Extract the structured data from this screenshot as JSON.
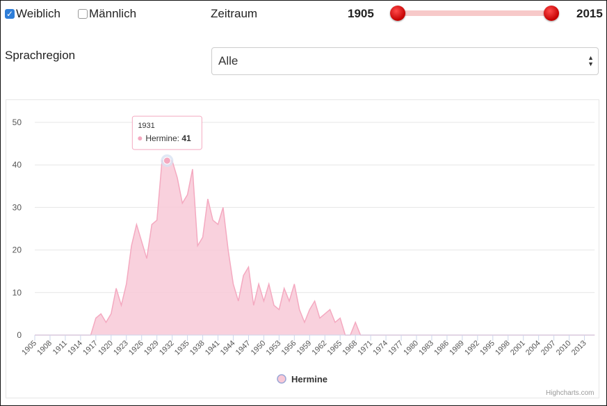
{
  "filters": {
    "female": {
      "label": "Weiblich",
      "checked": true
    },
    "male": {
      "label": "Männlich",
      "checked": false
    },
    "period_label": "Zeitraum",
    "range_start": "1905",
    "range_end": "2015",
    "region_label": "Sprachregion",
    "region_value": "Alle"
  },
  "colors": {
    "area_fill": "#f8c9d7",
    "area_line": "#f4a9c0",
    "slider": "#d40000",
    "checkbox": "#2f7ed8"
  },
  "tooltip": {
    "year": "1931",
    "series": "Hermine",
    "value": "41"
  },
  "legend": {
    "label": "Hermine"
  },
  "credits": "Highcharts.com",
  "chart_data": {
    "type": "area",
    "title": "",
    "xlabel": "",
    "ylabel": "",
    "ylim": [
      0,
      50
    ],
    "yticks": [
      0,
      10,
      20,
      30,
      40,
      50
    ],
    "xticks": [
      1905,
      1908,
      1911,
      1914,
      1917,
      1920,
      1923,
      1926,
      1929,
      1932,
      1935,
      1938,
      1941,
      1944,
      1947,
      1950,
      1953,
      1956,
      1959,
      1962,
      1965,
      1968,
      1971,
      1974,
      1977,
      1980,
      1983,
      1986,
      1989,
      1992,
      1995,
      1998,
      2001,
      2004,
      2007,
      2010,
      2013
    ],
    "grid": true,
    "legend_position": "bottom-center",
    "x": [
      1905,
      1906,
      1907,
      1908,
      1909,
      1910,
      1911,
      1912,
      1913,
      1914,
      1915,
      1916,
      1917,
      1918,
      1919,
      1920,
      1921,
      1922,
      1923,
      1924,
      1925,
      1926,
      1927,
      1928,
      1929,
      1930,
      1931,
      1932,
      1933,
      1934,
      1935,
      1936,
      1937,
      1938,
      1939,
      1940,
      1941,
      1942,
      1943,
      1944,
      1945,
      1946,
      1947,
      1948,
      1949,
      1950,
      1951,
      1952,
      1953,
      1954,
      1955,
      1956,
      1957,
      1958,
      1959,
      1960,
      1961,
      1962,
      1963,
      1964,
      1965,
      1966,
      1967,
      1968,
      1969,
      1970,
      1971,
      1972,
      1973,
      1974,
      1975,
      1976,
      1977,
      1978,
      1979,
      1980,
      1981,
      1982,
      1983,
      1984,
      1985,
      1986,
      1987,
      1988,
      1989,
      1990,
      1991,
      1992,
      1993,
      1994,
      1995,
      1996,
      1997,
      1998,
      1999,
      2000,
      2001,
      2002,
      2003,
      2004,
      2005,
      2006,
      2007,
      2008,
      2009,
      2010,
      2011,
      2012,
      2013,
      2014,
      2015
    ],
    "series": [
      {
        "name": "Hermine",
        "values": [
          0,
          0,
          0,
          0,
          0,
          0,
          0,
          0,
          0,
          0,
          0,
          0,
          4,
          5,
          3,
          5,
          11,
          7,
          12,
          21,
          26,
          22,
          18,
          26,
          27,
          41,
          41,
          41,
          37,
          31,
          33,
          39,
          21,
          23,
          32,
          27,
          26,
          30,
          20,
          12,
          8,
          14,
          16,
          7,
          12,
          8,
          12,
          7,
          6,
          11,
          8,
          12,
          6,
          3,
          6,
          8,
          4,
          5,
          6,
          3,
          4,
          0,
          0,
          3,
          0,
          0,
          0,
          0,
          0,
          0,
          0,
          0,
          0,
          0,
          0,
          0,
          0,
          0,
          0,
          0,
          0,
          0,
          0,
          0,
          0,
          0,
          0,
          0,
          0,
          0,
          0,
          0,
          0,
          0,
          0,
          0,
          0,
          0,
          0,
          0,
          0,
          0,
          0,
          0,
          0,
          0,
          0,
          0,
          0,
          0,
          0
        ]
      }
    ]
  }
}
